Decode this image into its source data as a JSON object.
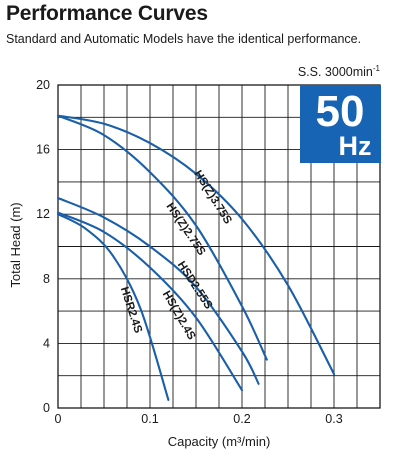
{
  "header": {
    "title": "Performance Curves",
    "subtitle": "Standard and Automatic Models have the identical performance."
  },
  "speed_label": {
    "text": "S.S. 3000min",
    "superscript": "-1"
  },
  "badge": {
    "value": "50",
    "unit": "Hz",
    "color": "#1763b4"
  },
  "colors": {
    "curve": "#1a5fa8",
    "grid": "#1a1a1a",
    "badge": "#1763b4"
  },
  "chart_data": {
    "type": "line",
    "title": "Performance Curves",
    "xlabel": "Capacity (m³/min)",
    "ylabel": "Total Head (m)",
    "xlim": [
      0,
      0.35
    ],
    "ylim": [
      0,
      20
    ],
    "x_ticks": [
      0,
      0.1,
      0.2,
      0.3
    ],
    "x_tick_labels": [
      "0",
      "0.1",
      "0.2",
      "0.3"
    ],
    "y_ticks": [
      0,
      4,
      8,
      12,
      16,
      20
    ],
    "y_tick_labels": [
      "0",
      "4",
      "8",
      "12",
      "16",
      "20"
    ],
    "grid": true,
    "series": [
      {
        "name": "HS(Z)3.75S",
        "x": [
          0,
          0.05,
          0.1,
          0.15,
          0.2,
          0.25,
          0.3
        ],
        "y": [
          18.1,
          17.6,
          16.4,
          14.5,
          11.7,
          7.6,
          2.1
        ]
      },
      {
        "name": "HS(Z)2.75S",
        "x": [
          0,
          0.05,
          0.1,
          0.15,
          0.2,
          0.227
        ],
        "y": [
          18.1,
          16.9,
          14.6,
          11.3,
          6.3,
          3.0
        ]
      },
      {
        "name": "HSD2.55S",
        "x": [
          0,
          0.05,
          0.1,
          0.15,
          0.2,
          0.218
        ],
        "y": [
          13.0,
          11.8,
          10.0,
          7.5,
          3.5,
          1.5
        ]
      },
      {
        "name": "HS(Z)2.4S",
        "x": [
          0,
          0.05,
          0.1,
          0.15,
          0.2
        ],
        "y": [
          12.1,
          10.9,
          8.7,
          5.6,
          1.1
        ]
      },
      {
        "name": "HSR2.4S",
        "x": [
          0,
          0.03,
          0.06,
          0.09,
          0.12
        ],
        "y": [
          12.0,
          11.1,
          9.4,
          6.1,
          0.5
        ]
      }
    ]
  }
}
